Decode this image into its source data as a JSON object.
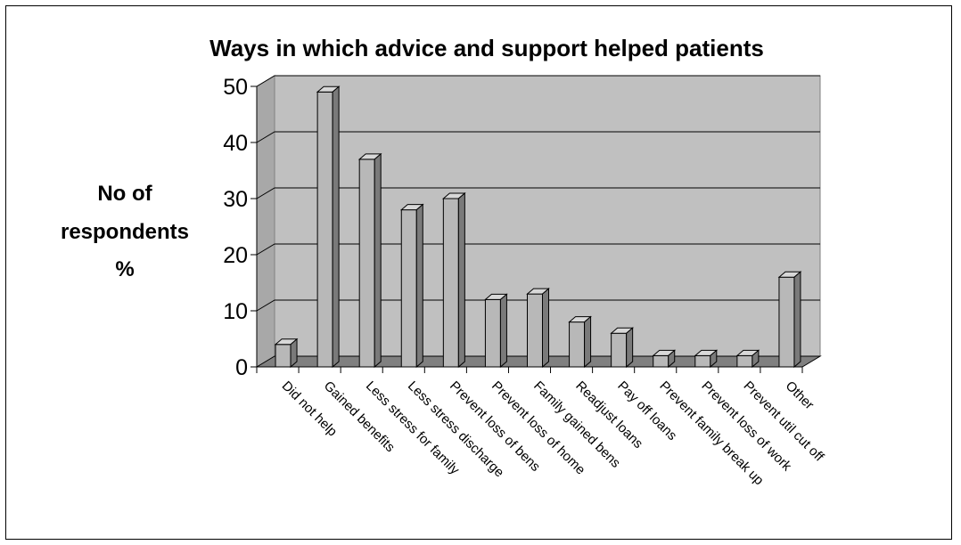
{
  "chart_data": {
    "type": "bar",
    "title": "Ways in which advice and support helped patients",
    "ylabel_lines": [
      "No of",
      "respondents",
      "%"
    ],
    "xlabel": "",
    "ylim": [
      0,
      50
    ],
    "yticks": [
      0,
      10,
      20,
      30,
      40,
      50
    ],
    "grid": true,
    "legend": "none",
    "categories": [
      "Did not help",
      "Gained benefits",
      "Less stress for family",
      "Less stress discharge",
      "Prevent loss of bens",
      "Prevent loss of home",
      "Family gained bens",
      "Readjust loans",
      "Pay off loans",
      "Prevent family break up",
      "Prevent loss of work",
      "Prevent util cut off",
      "Other"
    ],
    "values": [
      4,
      49,
      37,
      28,
      30,
      12,
      13,
      8,
      6,
      2,
      2,
      2,
      16
    ],
    "colors": {
      "wall": "#c0c0c0",
      "floor": "#808080",
      "bar_front": "#b8b8b8",
      "bar_top": "#d8d8d8",
      "bar_side": "#7a7a7a",
      "grid": "#000000"
    }
  }
}
